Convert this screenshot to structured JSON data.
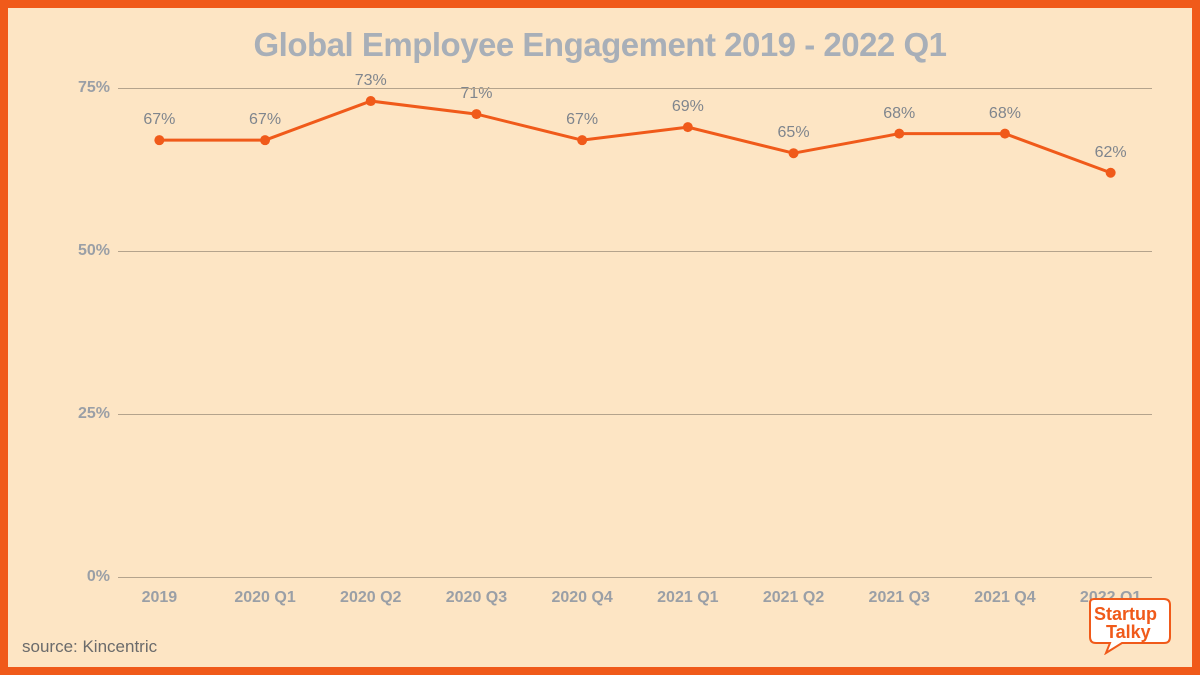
{
  "chart": {
    "type": "line",
    "title": "Global Employee Engagement 2019 - 2022 Q1",
    "title_fontsize": 33,
    "title_color": "#a8afb8",
    "background_color": "#fde5c4",
    "border_color": "#f05a1a",
    "border_width": 8,
    "line_color": "#f05a1a",
    "line_width": 3,
    "marker_color": "#f05a1a",
    "marker_radius": 5,
    "grid_color": "#b4a38c",
    "axis_label_color": "#9a9fa6",
    "axis_label_fontsize": 16,
    "point_label_color": "#7f858d",
    "point_label_fontsize": 16,
    "point_label_suffix": "%",
    "ylim": [
      0,
      75
    ],
    "yticks": [
      0,
      25,
      50,
      75
    ],
    "ytick_suffix": "%",
    "categories": [
      "2019",
      "2020 Q1",
      "2020 Q2",
      "2020 Q3",
      "2020 Q4",
      "2021 Q1",
      "2021 Q2",
      "2021 Q3",
      "2021 Q4",
      "2022 Q1"
    ],
    "values": [
      67,
      67,
      73,
      71,
      67,
      69,
      65,
      68,
      68,
      62
    ]
  },
  "source": {
    "text": "source: Kincentric",
    "fontsize": 17,
    "color": "#6b6b6b"
  },
  "logo": {
    "line1": "Startup",
    "line2": "Talky",
    "text_color": "#f05a1a",
    "bubble_fill": "#ffffff",
    "bubble_stroke": "#f05a1a",
    "fontsize": 18
  }
}
